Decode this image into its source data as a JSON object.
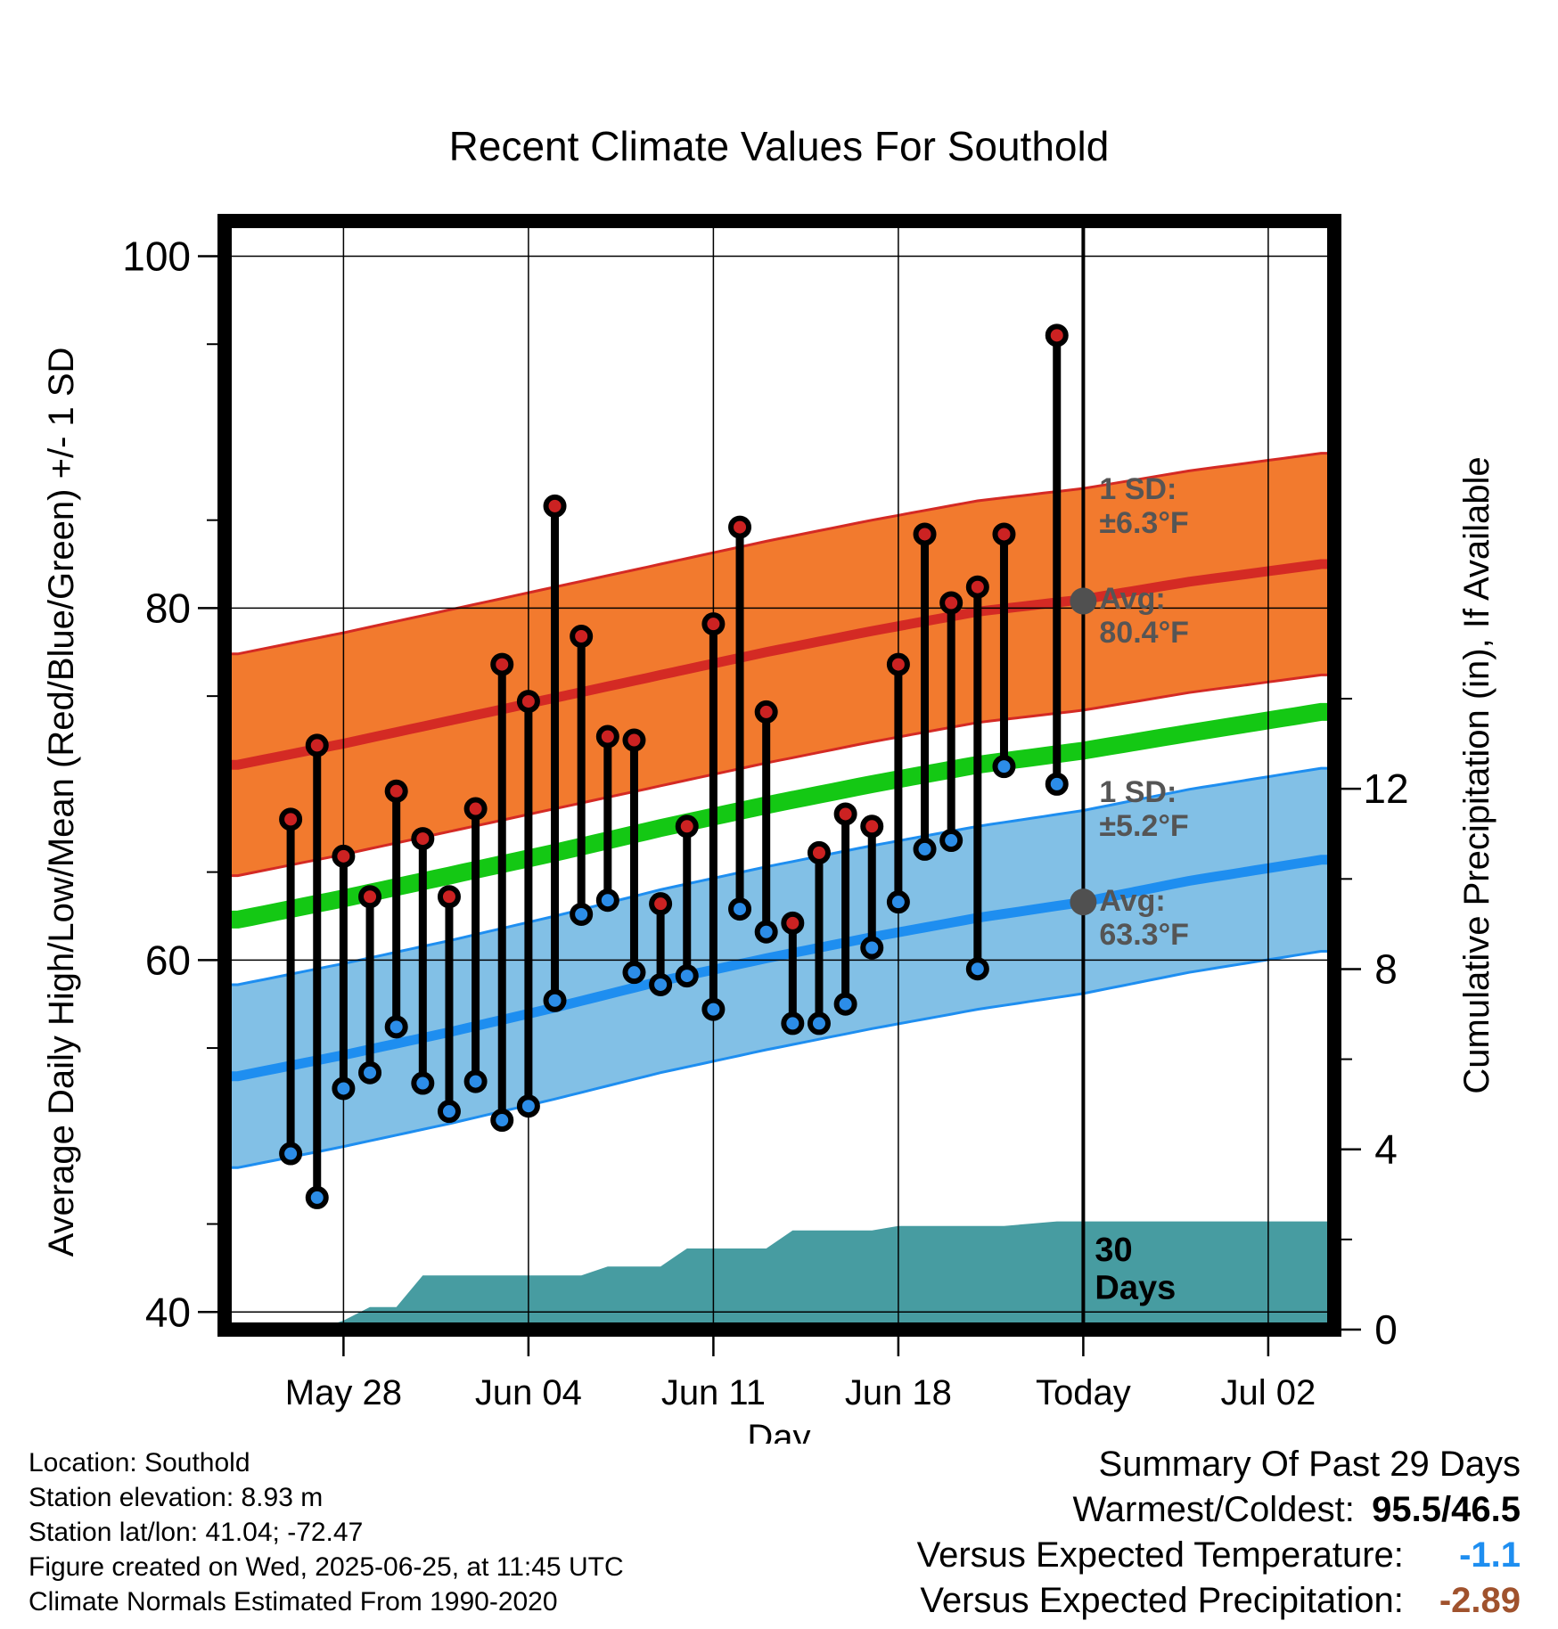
{
  "chart_data": {
    "type": "line",
    "title": "Recent Climate Values For Southold",
    "xlabel": "Day",
    "ylabel": "Average Daily High/Low/Mean (Red/Blue/Green) +/- 1 SD",
    "ylabel_right": "Cumulative Precipitation (in), If Available",
    "ylim": [
      39,
      102
    ],
    "ylim_right": [
      0,
      24.6
    ],
    "y_ticks": [
      "40",
      "60",
      "80",
      "100"
    ],
    "y_ticks_right": [
      "0",
      "4",
      "8",
      "12"
    ],
    "x_range": [
      -32.5,
      9.5
    ],
    "x_ticks": [
      {
        "day": -28,
        "label": "May 28"
      },
      {
        "day": -21,
        "label": "Jun 04"
      },
      {
        "day": -14,
        "label": "Jun 11"
      },
      {
        "day": -7,
        "label": "Jun 18"
      },
      {
        "day": 0,
        "label": "Today"
      },
      {
        "day": 7,
        "label": "Jul 02"
      }
    ],
    "grid": true,
    "normals": {
      "x": [
        -32,
        -28,
        -24,
        -20,
        -16,
        -12,
        -8,
        -4,
        0,
        4,
        9
      ],
      "high_mean": [
        71.1,
        72.3,
        73.6,
        74.9,
        76.2,
        77.5,
        78.7,
        79.8,
        80.5,
        81.5,
        82.5
      ],
      "high_sd": 6.3,
      "low_mean": [
        53.4,
        54.6,
        55.9,
        57.3,
        58.8,
        60.1,
        61.3,
        62.4,
        63.3,
        64.5,
        65.7
      ],
      "low_sd": 5.2,
      "mean": [
        62.3,
        63.5,
        64.8,
        66.1,
        67.5,
        68.8,
        70.0,
        71.1,
        71.9,
        72.9,
        74.1
      ]
    },
    "observations": {
      "x": [
        -30,
        -29,
        -28,
        -27,
        -26,
        -25,
        -24,
        -23,
        -22,
        -21,
        -20,
        -19,
        -18,
        -17,
        -16,
        -15,
        -14,
        -13,
        -12,
        -11,
        -10,
        -9,
        -8,
        -7,
        -6,
        -5,
        -4,
        -3,
        -1
      ],
      "high": [
        68.0,
        72.2,
        65.9,
        63.6,
        69.6,
        66.9,
        63.6,
        68.6,
        76.8,
        74.7,
        85.8,
        78.4,
        72.7,
        72.5,
        63.2,
        67.6,
        79.1,
        84.6,
        74.1,
        62.1,
        66.1,
        68.3,
        67.6,
        76.8,
        84.2,
        80.3,
        81.2,
        84.2,
        95.5
      ],
      "low": [
        49.0,
        46.5,
        52.7,
        53.6,
        56.2,
        53.0,
        51.4,
        53.1,
        50.9,
        51.7,
        57.7,
        62.6,
        63.4,
        59.3,
        58.6,
        59.1,
        57.2,
        62.9,
        61.6,
        56.4,
        56.4,
        57.5,
        60.7,
        63.3,
        66.3,
        66.8,
        59.5,
        71.0,
        70.0
      ]
    },
    "precipitation": {
      "x": [
        -32.5,
        -29,
        -28,
        -27,
        -26,
        -25,
        -24,
        -21,
        -20,
        -19,
        -18,
        -17,
        -16,
        -15,
        -14,
        -13,
        -12,
        -11,
        -10,
        -9,
        -8,
        -7,
        -6,
        -5,
        -4,
        -3,
        -1,
        0,
        9.5
      ],
      "cumulative": [
        0,
        0,
        0.2,
        0.5,
        0.5,
        1.2,
        1.2,
        1.2,
        1.2,
        1.2,
        1.4,
        1.4,
        1.4,
        1.8,
        1.8,
        1.8,
        1.8,
        2.2,
        2.2,
        2.2,
        2.2,
        2.3,
        2.3,
        2.3,
        2.3,
        2.3,
        2.4,
        2.4,
        2.4
      ]
    },
    "annotations": {
      "high_sd_label": [
        "1 SD:",
        "±6.3°F"
      ],
      "high_avg_label": [
        "Avg:",
        "80.4°F"
      ],
      "low_sd_label": [
        "1 SD:",
        "±5.2°F"
      ],
      "low_avg_label": [
        "Avg:",
        "63.3°F"
      ],
      "today_avg_high": 80.4,
      "today_avg_low": 63.3,
      "days_label": [
        "30",
        "Days"
      ]
    },
    "colors": {
      "high_band": "#f27a2e",
      "high_line": "#d42a24",
      "low_band": "#82c0e6",
      "low_line": "#1e8ef0",
      "mean_line": "#14c814",
      "precip_fill": "#479ca1",
      "high_marker": "#cc2222",
      "low_marker": "#2c8de8"
    }
  },
  "footer": {
    "location": "Location: Southold",
    "elevation": "Station elevation: 8.93 m",
    "latlon": "Station lat/lon: 41.04; -72.47",
    "created": "Figure created on Wed, 2025-06-25, at 11:45 UTC",
    "normals": "Climate Normals Estimated From 1990-2020"
  },
  "summary": {
    "title": "Summary Of Past 29 Days",
    "warm_cold_label": "Warmest/Coldest:",
    "warm_cold_value": "95.5/46.5",
    "temp_label": "Versus Expected Temperature:",
    "temp_value": "-1.1",
    "temp_color": "#1e8ef0",
    "precip_label": "Versus Expected Precipitation:",
    "precip_value": "-2.89",
    "precip_color": "#a0522d"
  }
}
